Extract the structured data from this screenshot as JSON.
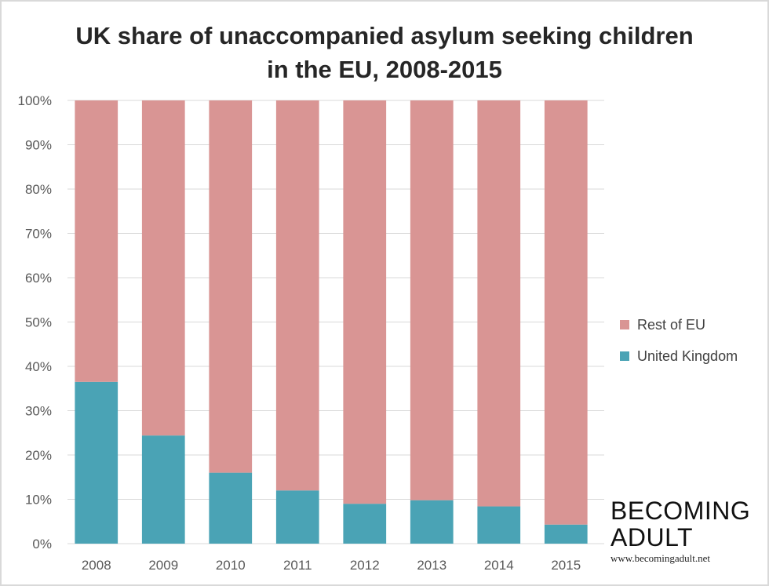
{
  "title_lines": [
    "UK share of unaccompanied asylum seeking children",
    "in the EU, 2008-2015"
  ],
  "legend": [
    {
      "label": "Rest of EU",
      "color": "#d99594"
    },
    {
      "label": "United Kingdom",
      "color": "#4aa3b5"
    }
  ],
  "brand": {
    "line1": "BECOMING",
    "line2": "ADULT",
    "url": "www.becomingadult.net"
  },
  "chart_data": {
    "type": "bar",
    "stacked": true,
    "percent": true,
    "categories": [
      "2008",
      "2009",
      "2010",
      "2011",
      "2012",
      "2013",
      "2014",
      "2015"
    ],
    "series": [
      {
        "name": "United Kingdom",
        "color": "#4aa3b5",
        "values": [
          36.5,
          24.4,
          16.0,
          12.0,
          9.0,
          9.8,
          8.4,
          4.3
        ]
      },
      {
        "name": "Rest of EU",
        "color": "#d99594",
        "values": [
          63.5,
          75.6,
          84.0,
          88.0,
          91.0,
          90.2,
          91.6,
          95.7
        ]
      }
    ],
    "ylim": [
      0,
      100
    ],
    "yticks": [
      "0%",
      "10%",
      "20%",
      "30%",
      "40%",
      "50%",
      "60%",
      "70%",
      "80%",
      "90%",
      "100%"
    ],
    "grid": true,
    "legend_position": "right"
  }
}
